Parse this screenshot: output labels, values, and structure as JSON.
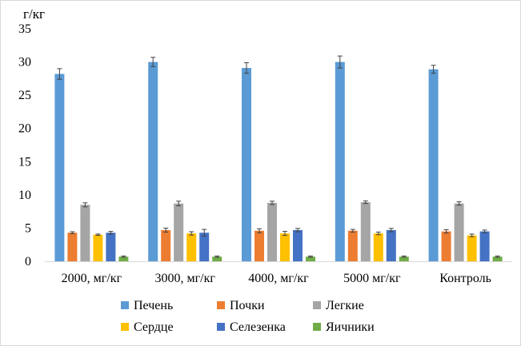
{
  "chart_data": {
    "type": "bar",
    "y_unit_label": "г/кг",
    "ylim": [
      0,
      35
    ],
    "yticks": [
      0,
      5,
      10,
      15,
      20,
      25,
      30,
      35
    ],
    "grid": false,
    "legend_position": "bottom",
    "categories": [
      "2000, мг/кг",
      "3000, мг/кг",
      "4000, мг/кг",
      "5000 мг/кг",
      "Контроль"
    ],
    "series": [
      {
        "name": "Печень",
        "color": "#5B9BD5",
        "values": [
          28.2,
          30.0,
          29.1,
          30.0,
          28.9
        ],
        "errors": [
          0.8,
          0.7,
          0.8,
          0.9,
          0.6
        ]
      },
      {
        "name": "Почки",
        "color": "#ED7D31",
        "values": [
          4.3,
          4.7,
          4.6,
          4.6,
          4.5
        ],
        "errors": [
          0.15,
          0.3,
          0.3,
          0.2,
          0.25
        ]
      },
      {
        "name": "Легкие",
        "color": "#A5A5A5",
        "values": [
          8.5,
          8.7,
          8.8,
          8.9,
          8.7
        ],
        "errors": [
          0.3,
          0.35,
          0.25,
          0.2,
          0.25
        ]
      },
      {
        "name": "Сердце",
        "color": "#FFC000",
        "values": [
          4.0,
          4.2,
          4.2,
          4.2,
          3.9
        ],
        "errors": [
          0.1,
          0.25,
          0.3,
          0.2,
          0.2
        ]
      },
      {
        "name": "Селезенка",
        "color": "#4472C4",
        "values": [
          4.3,
          4.3,
          4.7,
          4.7,
          4.5
        ],
        "errors": [
          0.2,
          0.5,
          0.25,
          0.25,
          0.2
        ]
      },
      {
        "name": "Яичники",
        "color": "#70AD47",
        "values": [
          0.7,
          0.7,
          0.7,
          0.7,
          0.7
        ],
        "errors": [
          0.1,
          0.1,
          0.1,
          0.1,
          0.1
        ]
      }
    ]
  }
}
